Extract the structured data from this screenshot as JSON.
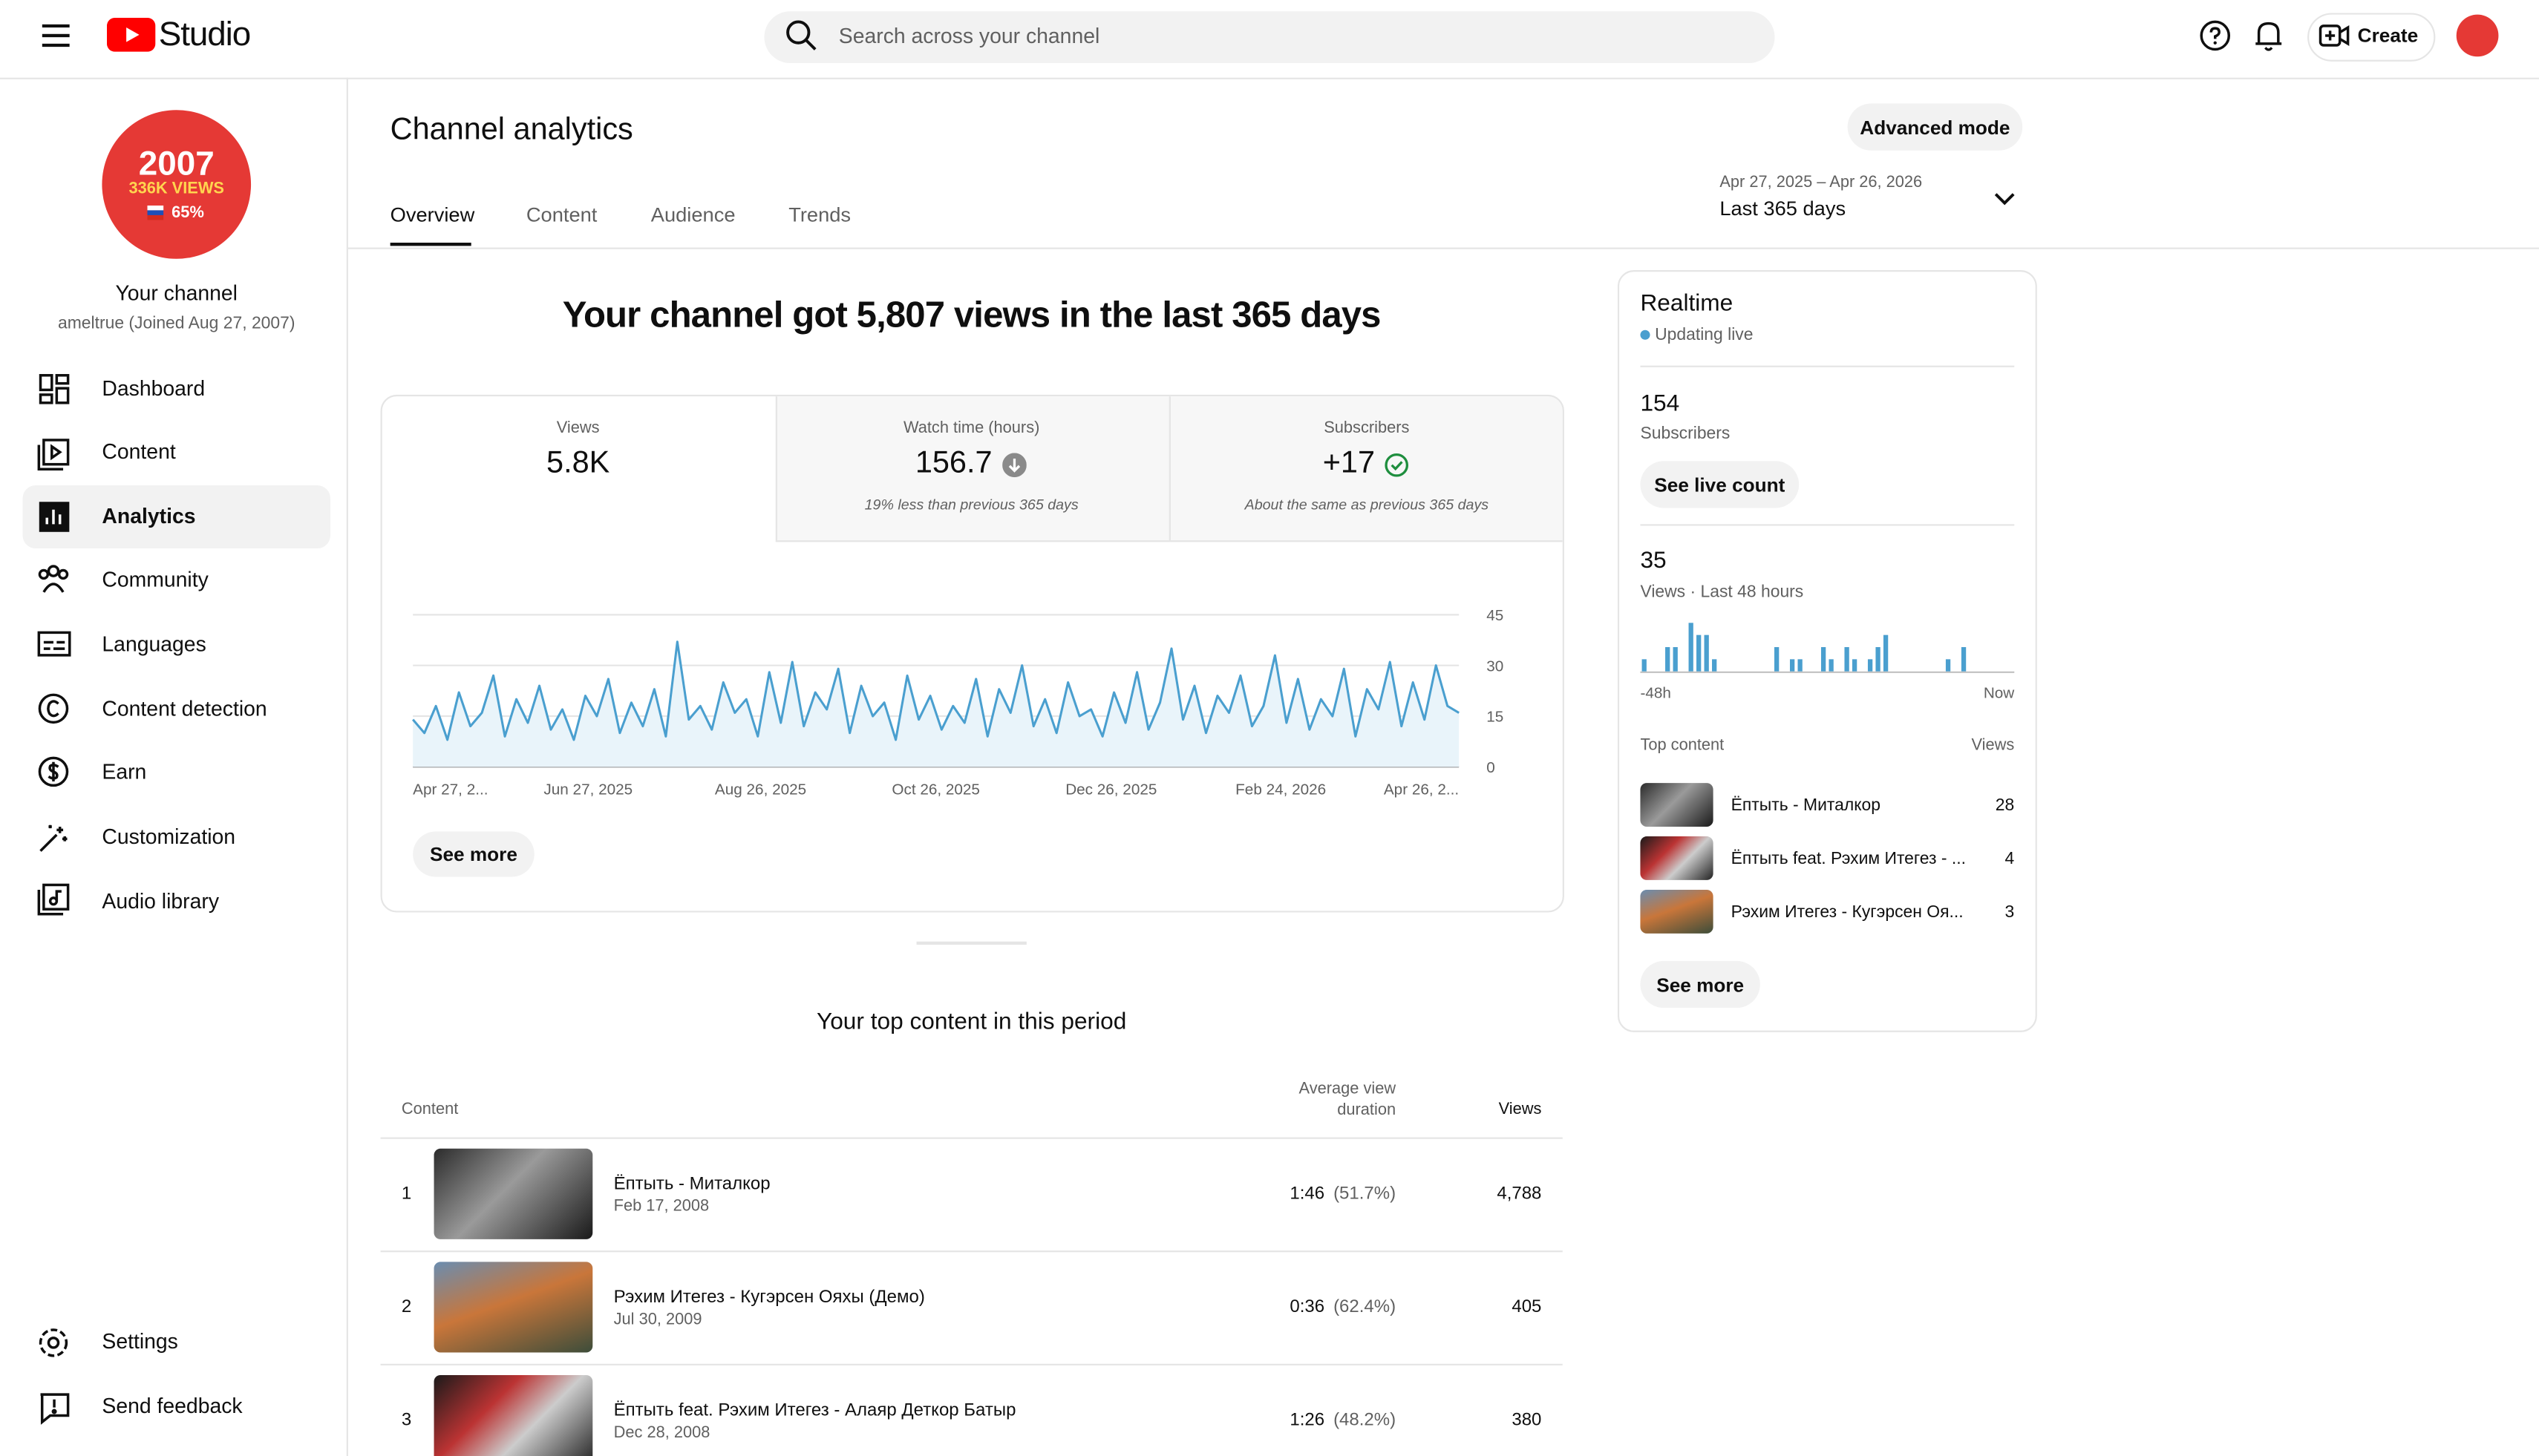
{
  "header": {
    "logo_text": "Studio",
    "search_placeholder": "Search across your channel",
    "create": "Create"
  },
  "channel_avatar": {
    "line1": "2007",
    "line2": "336K VIEWS",
    "line3": "65%"
  },
  "sidebar": {
    "channel_name": "Your channel",
    "channel_handle": "ameltrue (Joined Aug 27, 2007)",
    "nav": [
      "Dashboard",
      "Content",
      "Analytics",
      "Community",
      "Languages",
      "Content detection",
      "Earn",
      "Customization",
      "Audio library"
    ],
    "bottom": [
      "Settings",
      "Send feedback"
    ]
  },
  "page": {
    "title": "Channel analytics",
    "advanced_mode": "Advanced mode",
    "tabs": [
      "Overview",
      "Content",
      "Audience",
      "Trends"
    ],
    "date_range": "Apr 27, 2025 – Apr 26, 2026",
    "period": "Last 365 days"
  },
  "overview": {
    "headline": "Your channel got 5,807 views in the last 365 days",
    "metrics": [
      {
        "label": "Views",
        "value": "5.8K"
      },
      {
        "label": "Watch time (hours)",
        "value": "156.7",
        "note": "19% less than previous 365 days"
      },
      {
        "label": "Subscribers",
        "value": "+17",
        "note": "About the same as previous 365 days"
      }
    ],
    "see_more": "See more"
  },
  "chart_data": [
    {
      "type": "line",
      "color": "#4a9fcf",
      "grid": true,
      "values": [
        14,
        10,
        18,
        8,
        22,
        12,
        16,
        27,
        9,
        20,
        13,
        24,
        11,
        17,
        8,
        21,
        15,
        26,
        10,
        19,
        12,
        23,
        9,
        37,
        14,
        18,
        11,
        25,
        16,
        20,
        9,
        28,
        13,
        31,
        12,
        22,
        17,
        29,
        10,
        24,
        15,
        19,
        8,
        27,
        14,
        21,
        11,
        18,
        13,
        26,
        9,
        23,
        16,
        30,
        12,
        20,
        10,
        25,
        15,
        17,
        9,
        22,
        13,
        28,
        11,
        19,
        35,
        14,
        24,
        10,
        21,
        16,
        27,
        12,
        18,
        33,
        13,
        26,
        11,
        20,
        15,
        29,
        9,
        23,
        17,
        31,
        12,
        25,
        14,
        30,
        18,
        16
      ],
      "xlim": [
        0,
        91
      ],
      "xticks": [
        {
          "value": 0,
          "label": "Apr 27, 2..."
        },
        {
          "value": 15.25,
          "label": "Jun 27, 2025"
        },
        {
          "value": 30.25,
          "label": "Aug 26, 2025"
        },
        {
          "value": 45.5,
          "label": "Oct 26, 2025"
        },
        {
          "value": 60.75,
          "label": "Dec 26, 2025"
        },
        {
          "value": 75.5,
          "label": "Feb 24, 2026"
        },
        {
          "value": 91,
          "label": "Apr 26, 2..."
        }
      ],
      "ylim": [
        0,
        45
      ],
      "yticks": [
        0,
        15,
        30,
        45
      ]
    },
    {
      "type": "bar",
      "color": "#4a9fcf",
      "values": [
        1,
        0,
        0,
        2,
        2,
        0,
        4,
        3,
        3,
        1,
        0,
        0,
        0,
        0,
        0,
        0,
        0,
        2,
        0,
        1,
        1,
        0,
        0,
        2,
        1,
        0,
        2,
        1,
        0,
        1,
        2,
        3,
        0,
        0,
        0,
        0,
        0,
        0,
        0,
        1,
        0,
        2,
        0,
        0,
        0,
        0,
        0,
        0
      ]
    }
  ],
  "top_content": {
    "title": "Your top content in this period",
    "headers": [
      "Content",
      "Average view duration",
      "Views"
    ],
    "rows": [
      {
        "rank": 1,
        "title": "Ёптыть - Миталкор",
        "date": "Feb 17, 2008",
        "duration": "1:46",
        "percent": "(51.7%)",
        "views": "4,788"
      },
      {
        "rank": 2,
        "title": "Рэхим Итегез - Кугэрсен Ояхы (Демо)",
        "date": "Jul 30, 2009",
        "duration": "0:36",
        "percent": "(62.4%)",
        "views": "405"
      },
      {
        "rank": 3,
        "title": "Ёптыть feat. Рэхим Итегез - Алаяр Деткор Батыр",
        "date": "Dec 28, 2008",
        "duration": "1:26",
        "percent": "(48.2%)",
        "views": "380"
      }
    ]
  },
  "realtime": {
    "title": "Realtime",
    "status": "Updating live",
    "subscribers": "154",
    "subscribers_label": "Subscribers",
    "see_live_count": "See live count",
    "views": "35",
    "views_label": "Views · Last 48 hours",
    "start_label": "-48h",
    "end_label": "Now",
    "top_content_label": "Top content",
    "views_header": "Views",
    "items": [
      {
        "title": "Ёптыть - Миталкор",
        "views": 28
      },
      {
        "title": "Ёптыть feat. Рэхим Итегез - ...",
        "views": 4
      },
      {
        "title": "Рэхим Итегез - Кугэрсен Оя...",
        "views": 3
      }
    ],
    "see_more": "See more"
  }
}
